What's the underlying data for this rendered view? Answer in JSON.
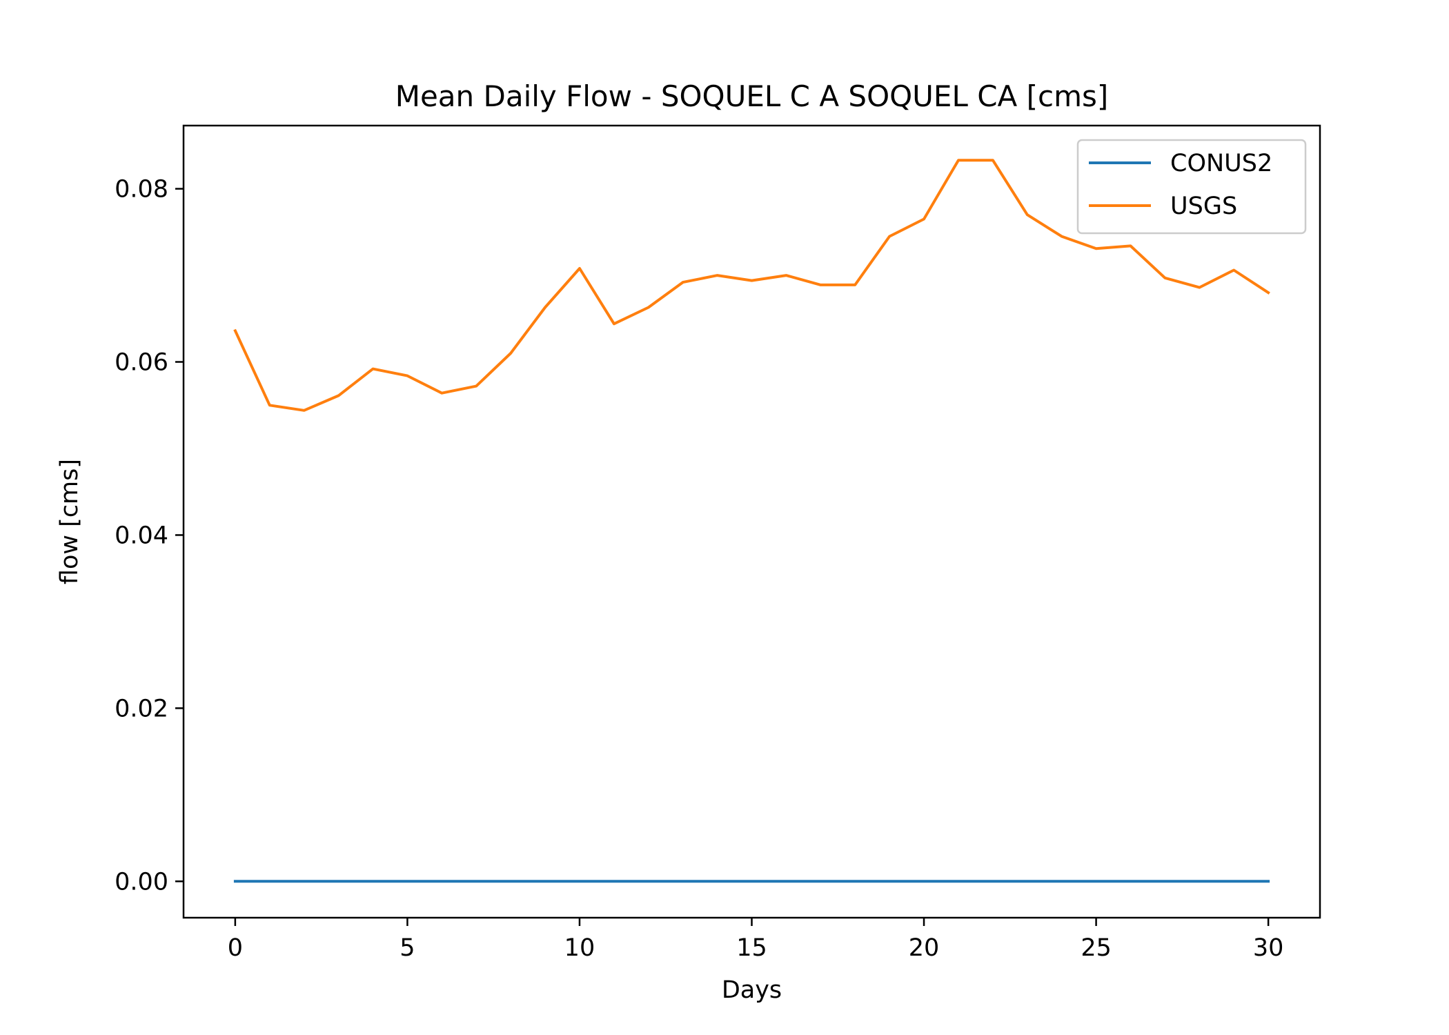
{
  "chart_data": {
    "type": "line",
    "title": "Mean Daily Flow - SOQUEL C A SOQUEL CA [cms]",
    "xlabel": "Days",
    "ylabel": "flow [cms]",
    "xlim": [
      -1.5,
      31.5
    ],
    "ylim": [
      -0.0042,
      0.0873
    ],
    "xticks": [
      0,
      5,
      10,
      15,
      20,
      25,
      30
    ],
    "xtick_labels": [
      "0",
      "5",
      "10",
      "15",
      "20",
      "25",
      "30"
    ],
    "yticks": [
      0.0,
      0.02,
      0.04,
      0.06,
      0.08
    ],
    "ytick_labels": [
      "0.00",
      "0.02",
      "0.04",
      "0.06",
      "0.08"
    ],
    "grid": false,
    "legend_position": "top-right",
    "x": [
      0,
      1,
      2,
      3,
      4,
      5,
      6,
      7,
      8,
      9,
      10,
      11,
      12,
      13,
      14,
      15,
      16,
      17,
      18,
      19,
      20,
      21,
      22,
      23,
      24,
      25,
      26,
      27,
      28,
      29,
      30
    ],
    "series": [
      {
        "name": "CONUS2",
        "color": "#1f77b4",
        "values": [
          0,
          0,
          0,
          0,
          0,
          0,
          0,
          0,
          0,
          0,
          0,
          0,
          0,
          0,
          0,
          0,
          0,
          0,
          0,
          0,
          0,
          0,
          0,
          0,
          0,
          0,
          0,
          0,
          0,
          0,
          0
        ]
      },
      {
        "name": "USGS",
        "color": "#ff7f0e",
        "values": [
          0.0636,
          0.055,
          0.0544,
          0.0561,
          0.0592,
          0.0584,
          0.0564,
          0.0572,
          0.061,
          0.0663,
          0.0708,
          0.0644,
          0.0663,
          0.0692,
          0.07,
          0.0694,
          0.07,
          0.0689,
          0.0689,
          0.0745,
          0.0765,
          0.0833,
          0.0833,
          0.077,
          0.0745,
          0.0731,
          0.0734,
          0.0697,
          0.0686,
          0.0706,
          0.068
        ]
      }
    ]
  }
}
